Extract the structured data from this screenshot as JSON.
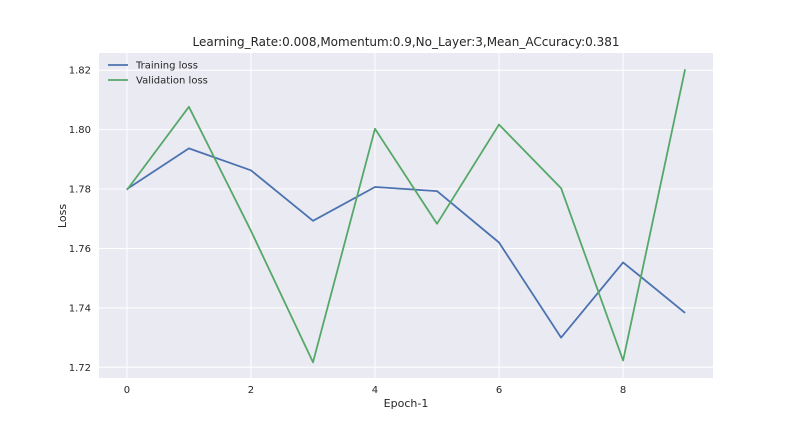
{
  "chart_data": {
    "type": "line",
    "title": "Learning_Rate:0.008,Momentum:0.9,No_Layer:3,Mean_ACcuracy:0.381",
    "xlabel": "Epoch-1",
    "ylabel": "Loss",
    "x": [
      0,
      1,
      2,
      3,
      4,
      5,
      6,
      7,
      8,
      9
    ],
    "xlim": [
      -0.45,
      9.45
    ],
    "ylim": [
      1.7164,
      1.8258
    ],
    "xticks": [
      0,
      2,
      4,
      6,
      8
    ],
    "yticks": [
      1.72,
      1.74,
      1.76,
      1.78,
      1.8,
      1.82
    ],
    "ytick_labels": [
      "1.72",
      "1.74",
      "1.76",
      "1.78",
      "1.80",
      "1.82"
    ],
    "grid": true,
    "legend_position": "top-left",
    "series": [
      {
        "name": "Training loss",
        "color": "#4c72b0",
        "values": [
          1.78,
          1.7937,
          1.7863,
          1.7693,
          1.7807,
          1.7793,
          1.762,
          1.73,
          1.7553,
          1.7383
        ]
      },
      {
        "name": "Validation loss",
        "color": "#55a868",
        "values": [
          1.7797,
          1.8077,
          1.766,
          1.7217,
          1.8003,
          1.7683,
          1.8017,
          1.7803,
          1.7223,
          1.8203
        ]
      }
    ]
  },
  "colors": {
    "plot_background": "#eaeaf2",
    "grid": "#ffffff",
    "text": "#262626"
  }
}
